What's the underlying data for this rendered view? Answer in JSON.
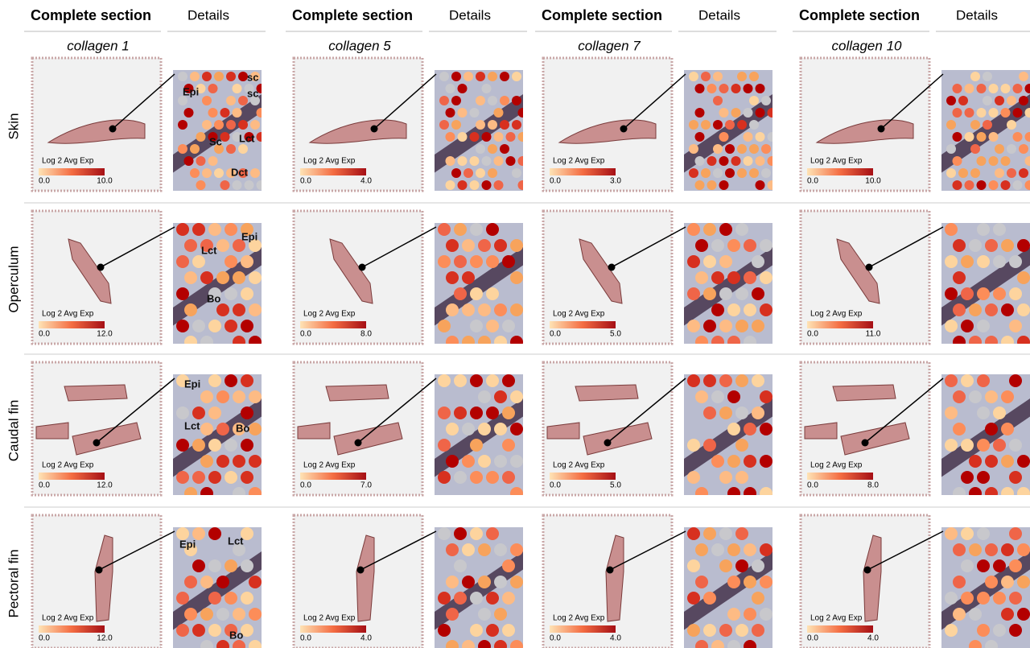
{
  "columns": [
    {
      "section": "Complete section",
      "details": "Details",
      "gene": "collagen 1"
    },
    {
      "section": "Complete section",
      "details": "Details",
      "gene": "collagen 5"
    },
    {
      "section": "Complete section",
      "details": "Details",
      "gene": "collagen 7"
    },
    {
      "section": "Complete section",
      "details": "Details",
      "gene": "collagen 10"
    }
  ],
  "legend_title": "Log 2 Avg Exp",
  "legend_min": "0.0",
  "rows": [
    {
      "label": "Skin",
      "max": [
        "10.0",
        "4.0",
        "3.0",
        "10.0"
      ],
      "annotations": [
        "Epi",
        "sc",
        "sc",
        "Sc",
        "Lct",
        "Dct"
      ]
    },
    {
      "label": "Operculum",
      "max": [
        "12.0",
        "8.0",
        "5.0",
        "11.0"
      ],
      "annotations": [
        "Lct",
        "Epi",
        "Bo"
      ]
    },
    {
      "label": "Caudal fin",
      "max": [
        "12.0",
        "7.0",
        "5.0",
        "8.0"
      ],
      "annotations": [
        "Epi",
        "Lct",
        "Bo"
      ]
    },
    {
      "label": "Pectoral fin",
      "max": [
        "12.0",
        "4.0",
        "4.0",
        "4.0"
      ],
      "annotations": [
        "Epi",
        "Lct",
        "Bo"
      ]
    }
  ]
}
